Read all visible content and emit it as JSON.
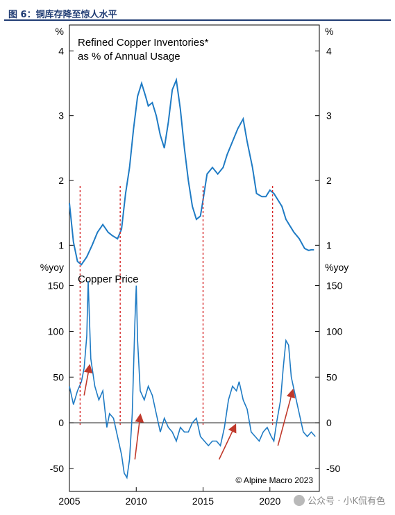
{
  "caption": "图 6：铜库存降至惊人水平",
  "watermark": "公众号 · 小K侃有色",
  "colors": {
    "line": "#1f7bc4",
    "dash": "#d62728",
    "arrow": "#c0392b",
    "caption": "#1f3b73"
  },
  "chart_data": [
    {
      "type": "line",
      "title": "Refined Copper Inventories* as % of Annual Usage",
      "title_lines": [
        "Refined Copper Inventories*",
        "as % of Annual Usage"
      ],
      "unit": "%",
      "ylim": [
        0.8,
        4.4
      ],
      "yticks": [
        1,
        2,
        3,
        4
      ],
      "x": [
        2005.0,
        2005.3,
        2005.6,
        2005.9,
        2006.3,
        2006.7,
        2007.1,
        2007.5,
        2007.9,
        2008.2,
        2008.6,
        2008.9,
        2009.2,
        2009.5,
        2009.8,
        2010.1,
        2010.4,
        2010.7,
        2010.9,
        2011.2,
        2011.5,
        2011.8,
        2012.1,
        2012.4,
        2012.7,
        2013.0,
        2013.3,
        2013.6,
        2013.9,
        2014.2,
        2014.5,
        2014.8,
        2015.0,
        2015.3,
        2015.7,
        2016.1,
        2016.5,
        2016.8,
        2017.2,
        2017.6,
        2018.0,
        2018.3,
        2018.7,
        2019.0,
        2019.4,
        2019.7,
        2020.0,
        2020.3,
        2020.6,
        2020.9,
        2021.2,
        2021.5,
        2021.8,
        2022.2,
        2022.6,
        2022.9,
        2023.1,
        2023.3
      ],
      "y": [
        1.65,
        1.05,
        0.75,
        0.7,
        0.82,
        1.0,
        1.2,
        1.32,
        1.2,
        1.15,
        1.1,
        1.25,
        1.8,
        2.2,
        2.8,
        3.3,
        3.5,
        3.3,
        3.15,
        3.2,
        3.0,
        2.7,
        2.5,
        2.9,
        3.4,
        3.55,
        3.1,
        2.5,
        2.0,
        1.6,
        1.4,
        1.45,
        1.7,
        2.1,
        2.2,
        2.1,
        2.2,
        2.4,
        2.6,
        2.8,
        2.95,
        2.6,
        2.2,
        1.8,
        1.75,
        1.75,
        1.85,
        1.8,
        1.7,
        1.6,
        1.4,
        1.3,
        1.2,
        1.1,
        0.95,
        0.92,
        0.93,
        0.93
      ]
    },
    {
      "type": "line",
      "title": "Copper Price",
      "unit": "%yoy",
      "ylim": [
        -75,
        180
      ],
      "yticks": [
        -50,
        0,
        50,
        100,
        150
      ],
      "xticks": [
        2005,
        2010,
        2015,
        2020
      ],
      "xlim": [
        2005,
        2023.7
      ],
      "x": [
        2005.0,
        2005.3,
        2005.6,
        2005.9,
        2006.1,
        2006.3,
        2006.4,
        2006.6,
        2006.9,
        2007.2,
        2007.5,
        2007.8,
        2008.0,
        2008.3,
        2008.6,
        2008.9,
        2009.1,
        2009.3,
        2009.5,
        2009.7,
        2009.9,
        2010.0,
        2010.1,
        2010.3,
        2010.6,
        2010.9,
        2011.2,
        2011.5,
        2011.8,
        2012.1,
        2012.4,
        2012.7,
        2013.0,
        2013.3,
        2013.6,
        2013.9,
        2014.2,
        2014.5,
        2014.8,
        2015.1,
        2015.4,
        2015.7,
        2016.0,
        2016.3,
        2016.6,
        2016.9,
        2017.2,
        2017.5,
        2017.7,
        2018.0,
        2018.3,
        2018.6,
        2018.9,
        2019.2,
        2019.5,
        2019.8,
        2020.1,
        2020.3,
        2020.5,
        2020.8,
        2021.0,
        2021.2,
        2021.4,
        2021.6,
        2021.9,
        2022.2,
        2022.5,
        2022.8,
        2023.1,
        2023.4
      ],
      "y": [
        40,
        20,
        35,
        45,
        60,
        95,
        155,
        70,
        40,
        25,
        35,
        -5,
        10,
        5,
        -15,
        -35,
        -55,
        -60,
        -40,
        10,
        110,
        150,
        90,
        35,
        25,
        40,
        30,
        10,
        -10,
        5,
        -5,
        -10,
        -20,
        -5,
        -10,
        -10,
        0,
        5,
        -15,
        -20,
        -25,
        -20,
        -20,
        -25,
        -5,
        25,
        40,
        35,
        45,
        25,
        15,
        -10,
        -15,
        -20,
        -10,
        -5,
        -15,
        -20,
        0,
        25,
        60,
        90,
        85,
        50,
        30,
        10,
        -10,
        -15,
        -10,
        -15
      ],
      "vlines_x": [
        2005.8,
        2008.8,
        2015.0,
        2020.2
      ],
      "annotation": "© Alpine Macro 2023"
    }
  ]
}
